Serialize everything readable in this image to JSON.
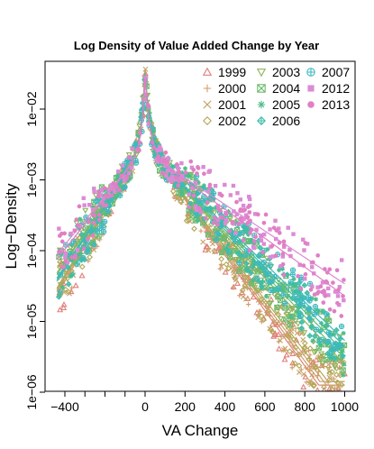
{
  "chart_data": {
    "type": "scatter",
    "title": "Log Density of Value Added Change by Year",
    "xlabel": "VA Change",
    "ylabel": "Log−Density",
    "xlim": [
      -450,
      1010
    ],
    "ylim": [
      -6.2,
      -1.3
    ],
    "y_scale": "log10",
    "x_ticks": [
      -400,
      0,
      200,
      400,
      600,
      800,
      1000
    ],
    "x_tick_labels": [
      "−400",
      "0",
      "200",
      "400",
      "600",
      "800",
      "1000"
    ],
    "y_ticks": [
      -6,
      -5,
      -4,
      -3,
      -2
    ],
    "y_tick_labels": [
      "1e−06",
      "1e−05",
      "1e−04",
      "1e−03",
      "1e−02"
    ],
    "legend_placement": "top-right",
    "series": [
      {
        "name": "1999",
        "marker": "triangle-up",
        "color": "#E0807A",
        "peak": -1.45,
        "left_slope": -0.009,
        "right_slope": -0.0046,
        "right_floor": -5.3
      },
      {
        "name": "2000",
        "marker": "plus",
        "color": "#D29A6A",
        "peak": -1.45,
        "left_slope": -0.0088,
        "right_slope": -0.0045,
        "right_floor": -5.25
      },
      {
        "name": "2001",
        "marker": "cross",
        "color": "#C7A266",
        "peak": -1.45,
        "left_slope": -0.0087,
        "right_slope": -0.0044,
        "right_floor": -5.3
      },
      {
        "name": "2002",
        "marker": "diamond",
        "color": "#B3A857",
        "peak": -1.45,
        "left_slope": -0.0086,
        "right_slope": -0.0043,
        "right_floor": -5.25
      },
      {
        "name": "2003",
        "marker": "triangle-down",
        "color": "#8FB35C",
        "peak": -1.5,
        "left_slope": -0.0075,
        "right_slope": -0.0036,
        "right_floor": -5.0
      },
      {
        "name": "2004",
        "marker": "square-cross",
        "color": "#6DBB6F",
        "peak": -1.5,
        "left_slope": -0.0076,
        "right_slope": -0.0035,
        "right_floor": -5.0
      },
      {
        "name": "2005",
        "marker": "asterisk",
        "color": "#4DBD8A",
        "peak": -1.5,
        "left_slope": -0.0078,
        "right_slope": -0.0034,
        "right_floor": -4.9
      },
      {
        "name": "2006",
        "marker": "diamond-plus",
        "color": "#3DBDA8",
        "peak": -1.5,
        "left_slope": -0.0079,
        "right_slope": -0.0033,
        "right_floor": -4.85
      },
      {
        "name": "2007",
        "marker": "circle-plus",
        "color": "#3DB9BE",
        "peak": -1.5,
        "left_slope": -0.008,
        "right_slope": -0.0032,
        "right_floor": -4.8
      },
      {
        "name": "2012",
        "marker": "square",
        "color": "#DB8BD6",
        "peak": -1.55,
        "left_slope": -0.0062,
        "right_slope": -0.0022,
        "right_floor": -4.2
      },
      {
        "name": "2013",
        "marker": "circle",
        "color": "#E07FC4",
        "peak": -1.55,
        "left_slope": -0.0065,
        "right_slope": -0.0024,
        "right_floor": -4.4
      }
    ]
  }
}
